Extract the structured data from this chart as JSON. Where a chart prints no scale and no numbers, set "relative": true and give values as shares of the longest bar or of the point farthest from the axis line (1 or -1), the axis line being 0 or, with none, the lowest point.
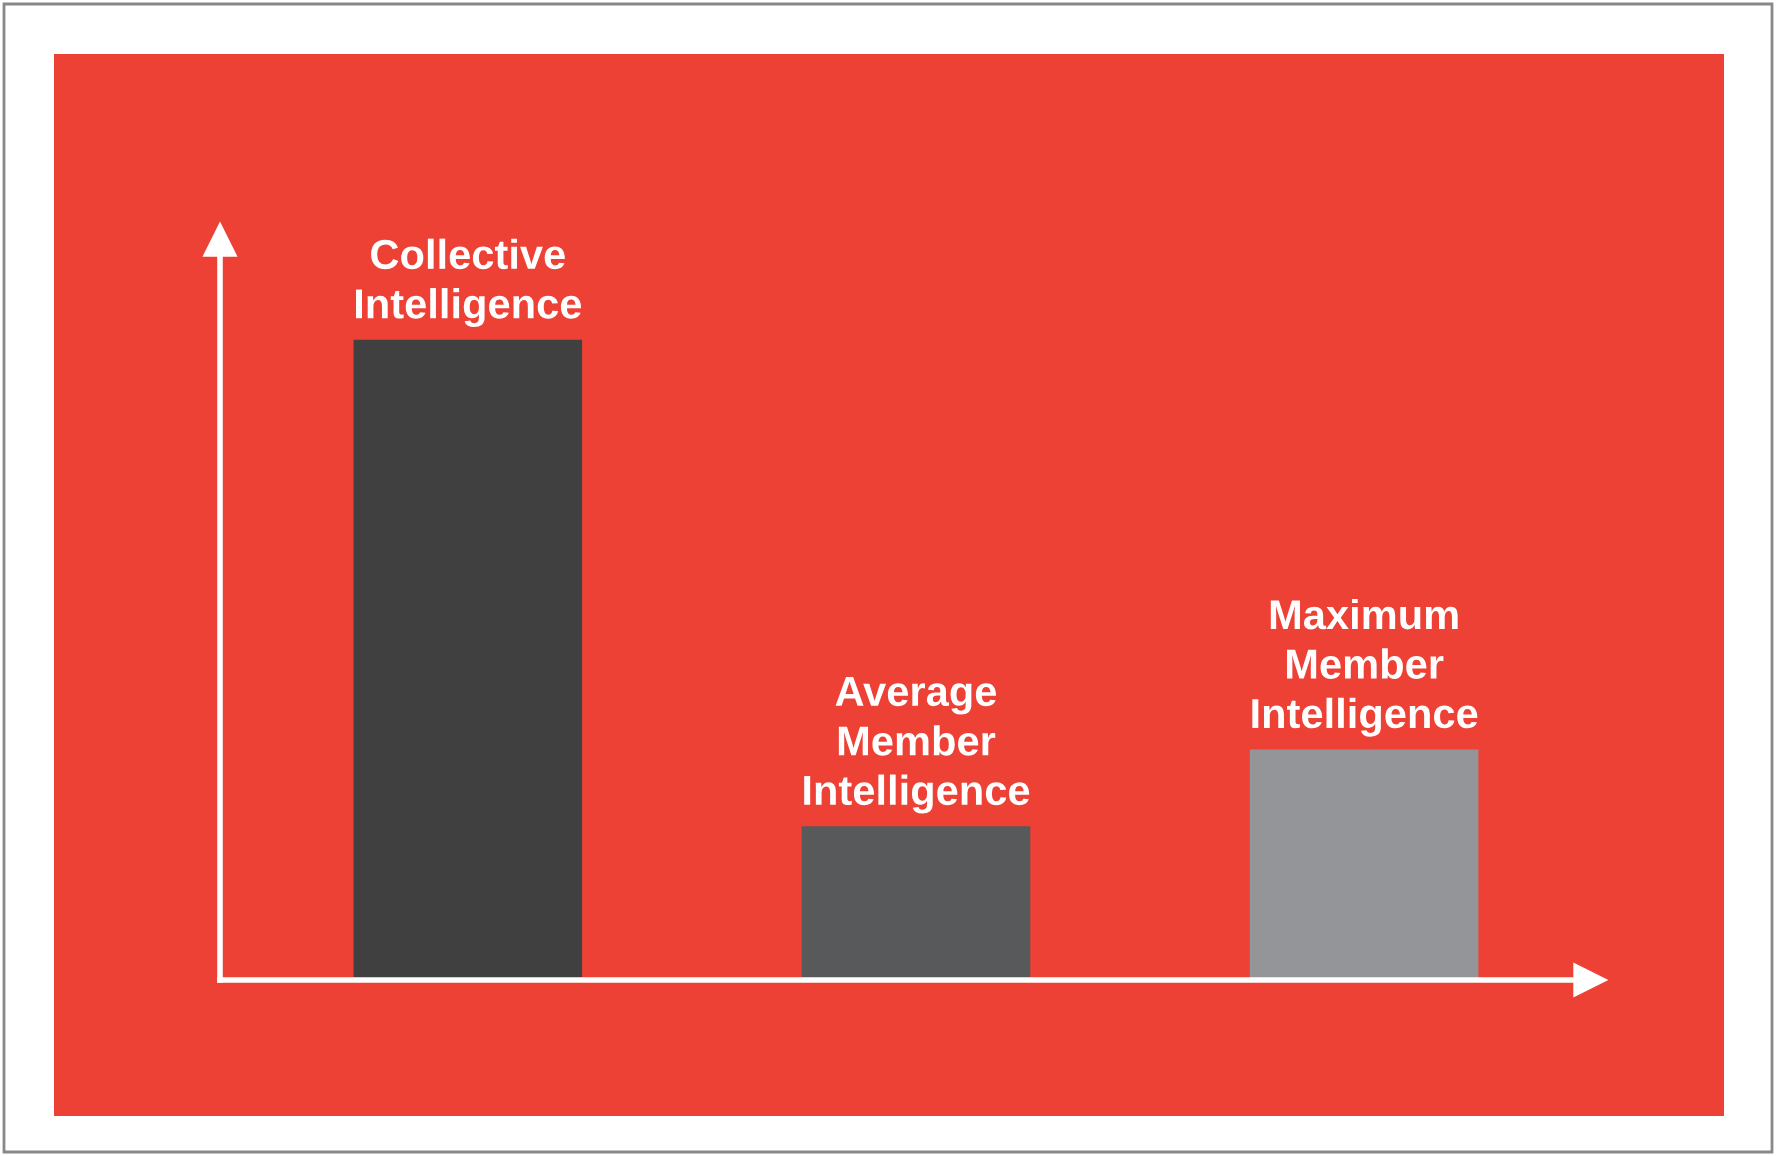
{
  "chart_data": {
    "type": "bar",
    "relative": true,
    "categories": [
      "Collective\nIntelligence",
      "Average\nMember\nIntelligence",
      "Maximum\nMember\nIntelligence"
    ],
    "values": [
      1,
      0.24,
      0.36
    ],
    "colors": [
      "#404041",
      "#58595b",
      "#939598"
    ],
    "legend": false
  }
}
